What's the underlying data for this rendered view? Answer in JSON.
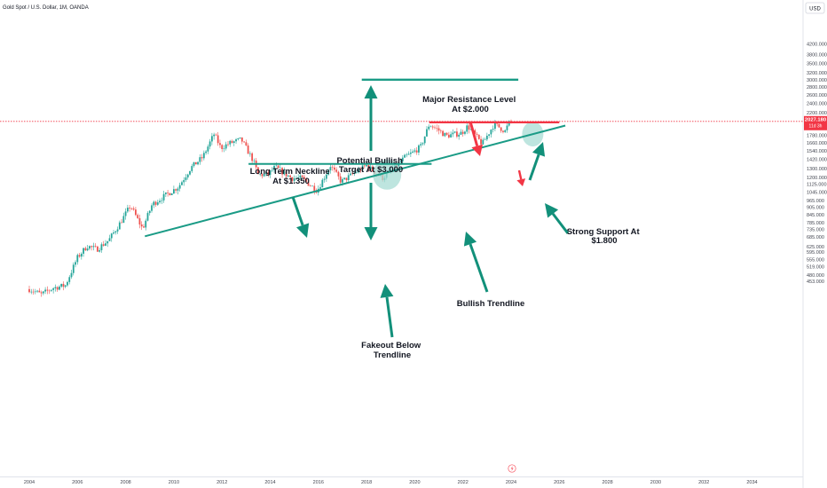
{
  "header": {
    "symbol_title": "Gold Spot / U.S. Dollar, 1M, OANDA",
    "currency": "USD"
  },
  "price_tag": {
    "price": "2027.180",
    "countdown": "11d 3h"
  },
  "annotations": {
    "long_term_neckline": [
      "Long Term Neckline",
      "At $1.350"
    ],
    "potential_bullish_target": [
      "Potential Bullish",
      "Target At $3.000"
    ],
    "major_resistance": [
      "Major Resistance Level",
      "At $2.000"
    ],
    "strong_support": [
      "Strong Support At",
      "$1.800"
    ],
    "bullish_trendline": [
      "Bullish Trendline"
    ],
    "fakeout": [
      "Fakeout Below",
      "Trendline"
    ]
  },
  "colors": {
    "up": "#26a69a",
    "down": "#ef5350",
    "drawing": "#1a9b86",
    "arrow": "#12907a",
    "resistance": "#f23645",
    "circle": "#a8dcd4",
    "price_line": "#f23645"
  },
  "icons": {
    "event_marker": "lightning-icon"
  },
  "chart_data": {
    "type": "candlestick",
    "title": "Gold Spot / U.S. Dollar, 1M, OANDA",
    "scale": "log",
    "ylabel": "USD",
    "ylim": [
      430,
      4400
    ],
    "x_range": [
      2003.9,
      2035.6
    ],
    "y_ticks": [
      4200,
      3800,
      3500,
      3200,
      3000,
      2800,
      2600,
      2400,
      2200,
      2000,
      1900,
      1780,
      1660,
      1540,
      1420,
      1300,
      1200,
      1125,
      1045,
      965,
      905,
      845,
      785,
      735,
      685,
      625,
      595,
      555,
      519,
      480,
      453
    ],
    "y_tick_labels": [
      "4200.000",
      "3800.000",
      "3500.000",
      "3200.000",
      "3000.000",
      "2800.000",
      "2600.000",
      "2400.000",
      "2200.000",
      "2000.000",
      "1900.000",
      "1780.000",
      "1660.000",
      "1540.000",
      "1420.000",
      "1300.000",
      "1200.000",
      "1125.000",
      "1045.000",
      "965.000",
      "905.000",
      "845.000",
      "785.000",
      "735.000",
      "685.000",
      "625.000",
      "595.000",
      "555.000",
      "519.000",
      "480.000",
      "453.000"
    ],
    "x_ticks": [
      "2004",
      "2006",
      "2008",
      "2010",
      "2012",
      "2014",
      "2016",
      "2018",
      "2020",
      "2022",
      "2024",
      "2026",
      "2028",
      "2030",
      "2032",
      "2034"
    ],
    "grid": false,
    "close_anchors": [
      [
        2004.0,
        420
      ],
      [
        2004.5,
        400
      ],
      [
        2005.0,
        425
      ],
      [
        2005.5,
        435
      ],
      [
        2006.0,
        565
      ],
      [
        2006.4,
        630
      ],
      [
        2006.8,
        610
      ],
      [
        2007.3,
        665
      ],
      [
        2007.8,
        790
      ],
      [
        2008.2,
        920
      ],
      [
        2008.7,
        740
      ],
      [
        2009.1,
        930
      ],
      [
        2009.7,
        1020
      ],
      [
        2010.2,
        1100
      ],
      [
        2010.7,
        1310
      ],
      [
        2011.2,
        1450
      ],
      [
        2011.67,
        1800
      ],
      [
        2011.95,
        1580
      ],
      [
        2012.3,
        1650
      ],
      [
        2012.8,
        1710
      ],
      [
        2013.3,
        1400
      ],
      [
        2013.5,
        1230
      ],
      [
        2013.9,
        1230
      ],
      [
        2014.2,
        1320
      ],
      [
        2014.9,
        1190
      ],
      [
        2015.3,
        1190
      ],
      [
        2015.95,
        1060
      ],
      [
        2016.5,
        1340
      ],
      [
        2016.95,
        1150
      ],
      [
        2017.5,
        1250
      ],
      [
        2018.0,
        1340
      ],
      [
        2018.65,
        1190
      ],
      [
        2019.1,
        1300
      ],
      [
        2019.6,
        1450
      ],
      [
        2019.95,
        1520
      ],
      [
        2020.25,
        1600
      ],
      [
        2020.6,
        1970
      ],
      [
        2020.95,
        1880
      ],
      [
        2021.3,
        1770
      ],
      [
        2021.95,
        1820
      ],
      [
        2022.2,
        1940
      ],
      [
        2022.8,
        1640
      ],
      [
        2023.3,
        1980
      ],
      [
        2023.75,
        1850
      ],
      [
        2023.9,
        1990
      ],
      [
        2024.0,
        2030
      ]
    ],
    "drawings": {
      "bullish_trendline": {
        "from": [
          2008.8,
          690
        ],
        "to": [
          2026.25,
          1950
        ]
      },
      "neckline": {
        "from": [
          2013.1,
          1360
        ],
        "to": [
          2020.7,
          1360
        ],
        "level": 1350
      },
      "resistance": {
        "from": [
          2020.6,
          2010
        ],
        "to": [
          2026.0,
          2010
        ],
        "level": 2000
      },
      "target": {
        "from": [
          2017.8,
          3000
        ],
        "to": [
          2024.3,
          3000
        ],
        "level": 3000
      },
      "support_level": 1800
    }
  }
}
